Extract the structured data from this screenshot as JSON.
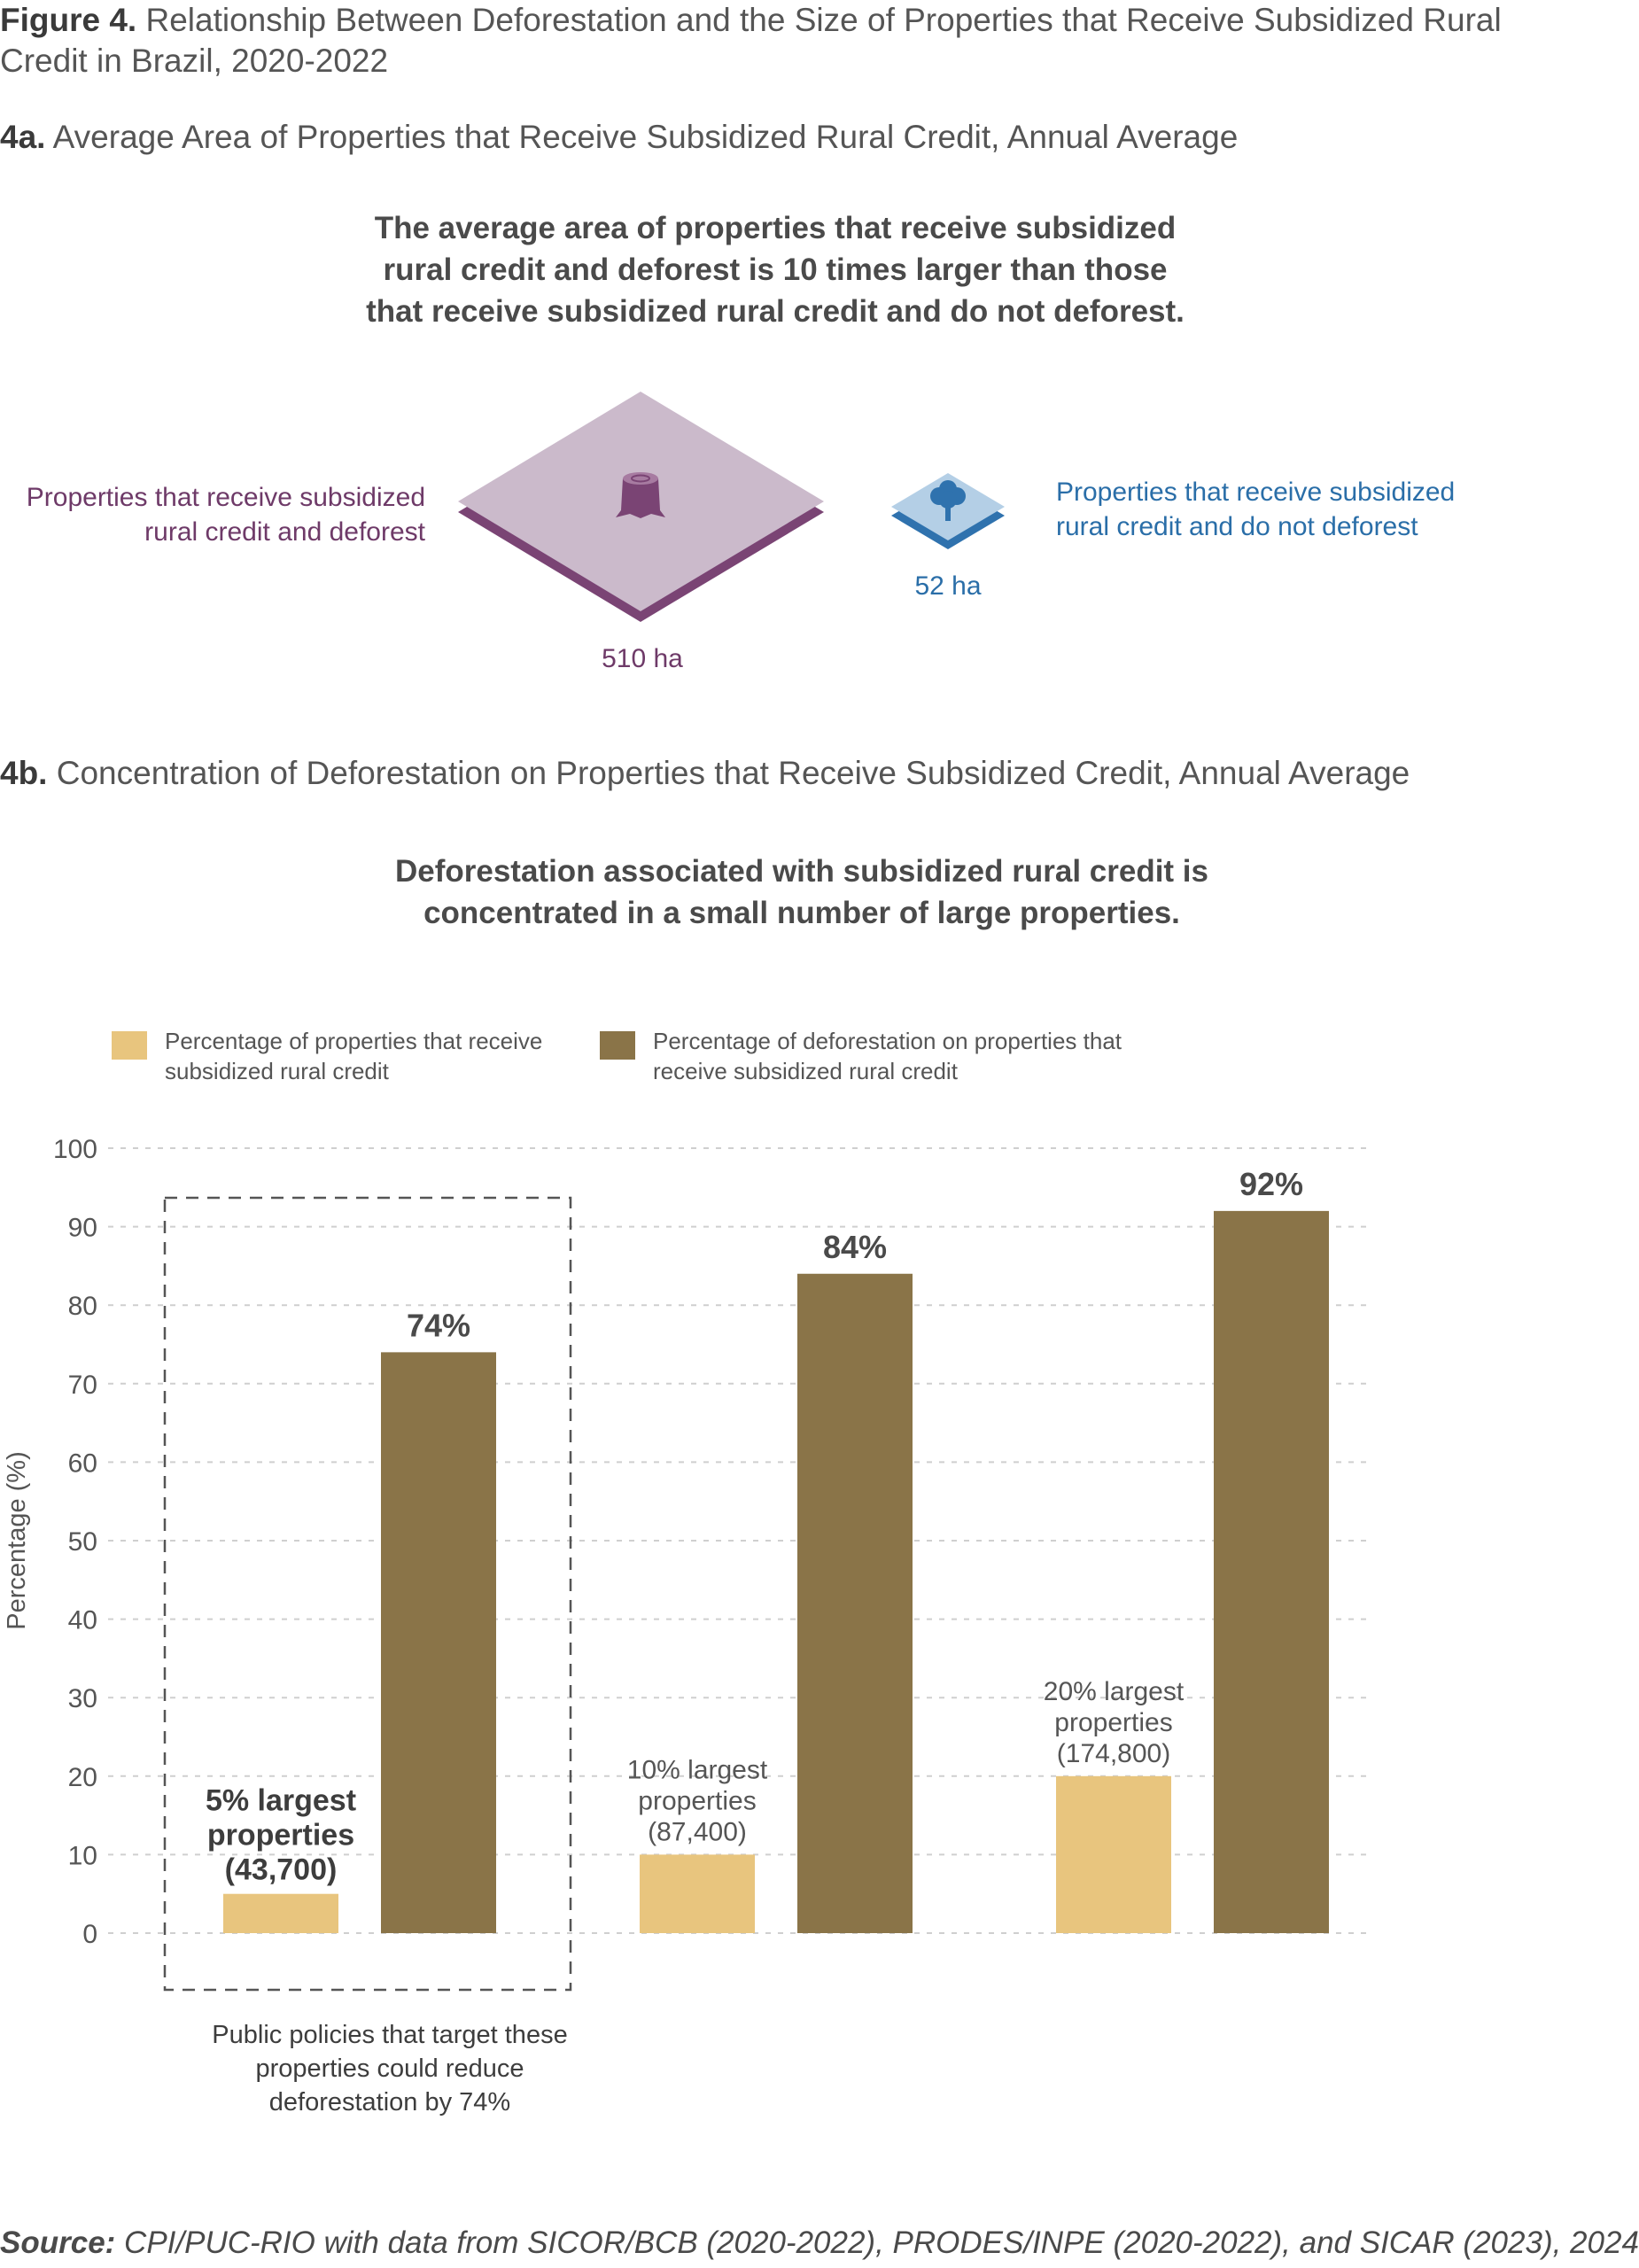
{
  "figure": {
    "title_bold": "Figure 4.",
    "title_text": " Relationship Between Deforestation and the Size of Properties that Receive Subsidized Rural Credit in Brazil, 2020-2022"
  },
  "panel_a": {
    "label_bold": "4a.",
    "label_text": " Average Area of Properties that Receive Subsidized Rural Credit, Annual Average",
    "headline_lines": [
      "The average area of properties that receive subsidized",
      "rural credit and deforest is 10 times larger than those",
      "that receive subsidized rural credit and do not deforest."
    ],
    "deforest": {
      "label_lines": [
        "Properties that receive subsidized",
        "rural credit and deforest"
      ],
      "value": "510 ha",
      "icon": "tree-stump-icon",
      "color": "#7a4474",
      "top_color": "#cbbacb"
    },
    "no_deforest": {
      "label_lines": [
        "Properties that receive subsidized",
        "rural credit and do not deforest"
      ],
      "value": "52 ha",
      "icon": "tree-icon",
      "color": "#2f72ae",
      "top_color": "#b4cfe6"
    }
  },
  "panel_b": {
    "label_bold": "4b.",
    "label_text": " Concentration of Deforestation on Properties that Receive Subsidized Credit, Annual Average",
    "headline_lines": [
      "Deforestation associated with subsidized rural credit is",
      "concentrated in a small number of large properties."
    ],
    "annotation_lines": [
      "Public policies that target these",
      "properties could reduce",
      "deforestation by 74%"
    ]
  },
  "chart_data": {
    "type": "bar",
    "ylabel": "Percentage (%)",
    "xlabel": "",
    "ylim": [
      0,
      100
    ],
    "yticks": [
      0,
      10,
      20,
      30,
      40,
      50,
      60,
      70,
      80,
      90,
      100
    ],
    "grid": true,
    "legend_position": "top-left",
    "categories": [
      {
        "lines": [
          "5% largest",
          "properties",
          "(43,700)"
        ],
        "bold": true,
        "highlighted": true
      },
      {
        "lines": [
          "10% largest",
          "properties",
          "(87,400)"
        ],
        "bold": false,
        "highlighted": false
      },
      {
        "lines": [
          "20% largest",
          "properties",
          "(174,800)"
        ],
        "bold": false,
        "highlighted": false
      }
    ],
    "series": [
      {
        "name": "Percentage of properties that receive subsidized rural credit",
        "name_lines": [
          "Percentage of properties that receive",
          "subsidized rural credit"
        ],
        "color": "#e8c57e",
        "values": [
          5,
          10,
          20
        ]
      },
      {
        "name": "Percentage of deforestation on properties that receive subsidized rural credit",
        "name_lines": [
          "Percentage of deforestation on properties that",
          "receive subsidized rural credit"
        ],
        "color": "#8a7448",
        "values": [
          74,
          84,
          92
        ],
        "data_labels": [
          "74%",
          "84%",
          "92%"
        ]
      }
    ]
  },
  "source": {
    "label_bold": "Source:",
    "text": " CPI/PUC-RIO with data from SICOR/BCB (2020-2022), PRODES/INPE (2020-2022), and SICAR (2023), 2024"
  }
}
